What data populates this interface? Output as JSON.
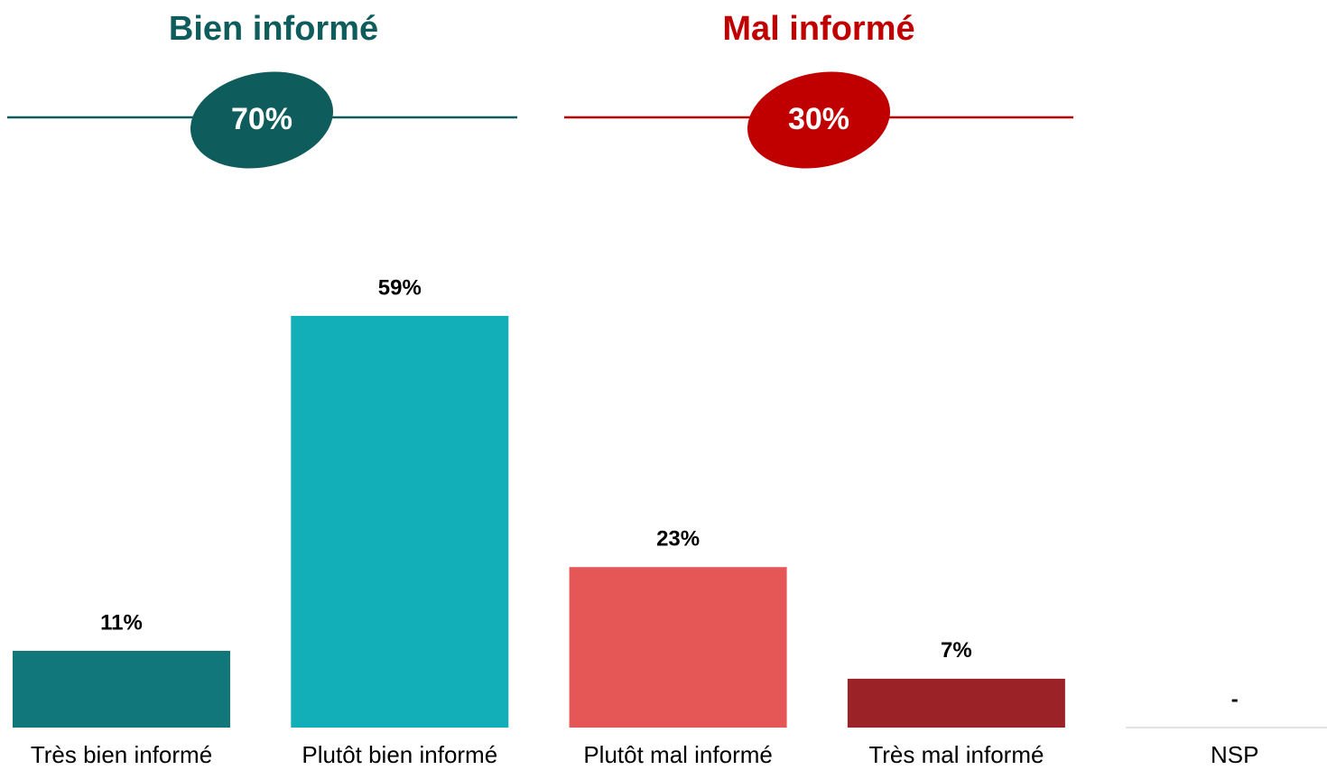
{
  "chart_data": {
    "type": "bar",
    "groups": [
      {
        "name": "Bien informé",
        "value": 70,
        "value_label": "70%",
        "color": "#0e5c5c"
      },
      {
        "name": "Mal informé",
        "value": 30,
        "value_label": "30%",
        "color": "#c00000"
      }
    ],
    "categories": [
      "Très bien informé",
      "Plutôt bien informé",
      "Plutôt mal informé",
      "Très mal informé",
      "NSP"
    ],
    "values": [
      11,
      59,
      23,
      7,
      null
    ],
    "value_labels": [
      "11%",
      "59%",
      "23%",
      "7%",
      "-"
    ],
    "colors": [
      "#12777a",
      "#13afb8",
      "#e55757",
      "#9b2226",
      "#d9d9d9"
    ]
  }
}
